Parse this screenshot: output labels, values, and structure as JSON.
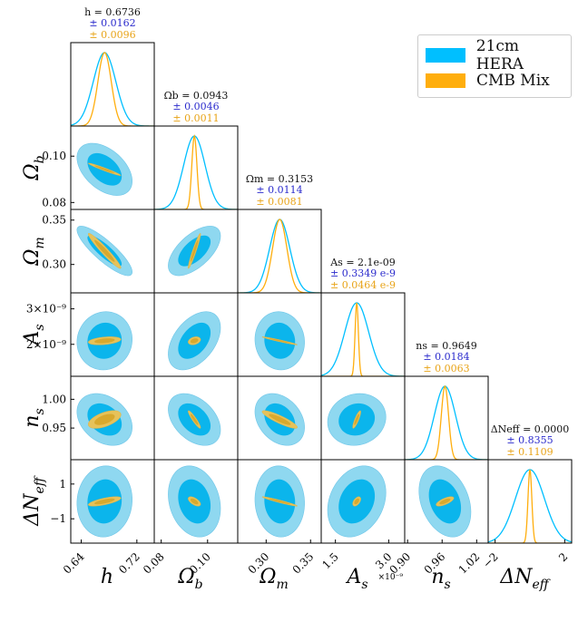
{
  "chart_data": {
    "type": "corner",
    "title": "",
    "colors": {
      "hera": "#00BFFF",
      "hera_outer": "#8FD8F0",
      "hera_inner": "#0BB5EC",
      "cmb": "#FFAE0D",
      "cmb_inner": "#D8A92E",
      "cmb_outer": "#E6C25A",
      "mean_text": "#111111",
      "hera_text": "#2A2ACC",
      "cmb_text": "#E8A317"
    },
    "legend": [
      {
        "name": "21cm HERA",
        "color": "#00BFFF"
      },
      {
        "name": "CMB Mix",
        "color": "#FFAE0D"
      }
    ],
    "parameters": [
      {
        "key": "h",
        "label": "h",
        "mean": 0.6736,
        "sig_hera": 0.0162,
        "sig_cmb": 0.0096,
        "title_line1": "h = 0.6736",
        "title_line2": "± 0.0162",
        "title_line3": "± 0.0096",
        "range": [
          0.625,
          0.745
        ],
        "ticks": [
          {
            "v": 0.64,
            "t": "0.64"
          },
          {
            "v": 0.72,
            "t": "0.72"
          }
        ]
      },
      {
        "key": "omega_b",
        "label": "Ωb",
        "mean": 0.0943,
        "sig_hera": 0.0046,
        "sig_cmb": 0.0011,
        "title_line1": "Ωb = 0.0943",
        "title_line2": "± 0.0046",
        "title_line3": "± 0.0011",
        "range": [
          0.077,
          0.113
        ],
        "ticks": [
          {
            "v": 0.08,
            "t": "0.08"
          },
          {
            "v": 0.1,
            "t": "0.10"
          }
        ]
      },
      {
        "key": "omega_m",
        "label": "Ωm",
        "mean": 0.3153,
        "sig_hera": 0.0114,
        "sig_cmb": 0.0081,
        "title_line1": "Ωm = 0.3153",
        "title_line2": "± 0.0114",
        "title_line3": "± 0.0081",
        "range": [
          0.268,
          0.362
        ],
        "ticks": [
          {
            "v": 0.3,
            "t": "0.30"
          },
          {
            "v": 0.35,
            "t": "0.35"
          }
        ]
      },
      {
        "key": "As",
        "label": "As",
        "mean": 2.1,
        "sig_hera": 0.3349,
        "sig_cmb": 0.0464,
        "title_line1": "As = 2.1e-09",
        "title_line2": "± 0.3349 e-9",
        "title_line3": "± 0.0464 e-9",
        "range": [
          1.1,
          3.45
        ],
        "ticks": [
          {
            "v": 1.5,
            "t": "1.5"
          },
          {
            "v": 3.0,
            "t": "3.0"
          }
        ],
        "y_ticks": [
          {
            "v": 2.0,
            "t": "2×10⁻⁹"
          },
          {
            "v": 3.0,
            "t": "3×10⁻⁹"
          }
        ],
        "x_offset_label": "×10⁻⁹"
      },
      {
        "key": "ns",
        "label": "ns",
        "mean": 0.9649,
        "sig_hera": 0.0184,
        "sig_cmb": 0.0063,
        "title_line1": "ns = 0.9649",
        "title_line2": "± 0.0184",
        "title_line3": "± 0.0063",
        "range": [
          0.895,
          1.04
        ],
        "ticks": [
          {
            "v": 0.9,
            "t": "0.90"
          },
          {
            "v": 0.96,
            "t": "0.96"
          },
          {
            "v": 1.02,
            "t": "1.02"
          }
        ],
        "y_ticks": [
          {
            "v": 0.95,
            "t": "0.95"
          },
          {
            "v": 1.0,
            "t": "1.00"
          }
        ]
      },
      {
        "key": "dneff",
        "label": "ΔNeff",
        "mean": 0.0,
        "sig_hera": 0.8355,
        "sig_cmb": 0.1109,
        "title_line1": "ΔNeff = 0.0000",
        "title_line2": "± 0.8355",
        "title_line3": "± 0.1109",
        "range": [
          -2.4,
          2.4
        ],
        "ticks": [
          {
            "v": -2,
            "t": "−2"
          },
          {
            "v": 2,
            "t": "2"
          }
        ],
        "y_ticks": [
          {
            "v": 1,
            "t": "1"
          },
          {
            "v": -1,
            "t": "−1"
          }
        ]
      }
    ],
    "y_ticks_override": {
      "omega_b": [
        {
          "v": 0.1,
          "t": "0.10"
        },
        {
          "v": 0.08,
          "t": "0.08"
        }
      ],
      "omega_m": [
        {
          "v": 0.35,
          "t": "0.35"
        },
        {
          "v": 0.3,
          "t": "0.30"
        }
      ]
    },
    "correlations": {
      "hera": {
        "1,0": -0.45,
        "2,0": -0.85,
        "2,1": 0.6,
        "3,0": 0.05,
        "3,1": 0.45,
        "3,2": -0.05,
        "4,0": -0.3,
        "4,1": -0.4,
        "4,2": -0.3,
        "4,3": 0.1,
        "5,0": 0.05,
        "5,1": -0.2,
        "5,2": -0.05,
        "5,3": 0.25,
        "5,4": -0.3
      },
      "cmb": {
        "1,0": -0.97,
        "2,0": -0.96,
        "2,1": 0.95,
        "3,0": 0.35,
        "3,1": 0.3,
        "3,2": -0.97,
        "4,0": 0.55,
        "4,1": -0.92,
        "4,2": -0.88,
        "4,3": 0.85,
        "5,0": 0.7,
        "5,1": -0.6,
        "5,2": -0.96,
        "5,3": 0.5,
        "5,4": 0.7
      }
    }
  }
}
